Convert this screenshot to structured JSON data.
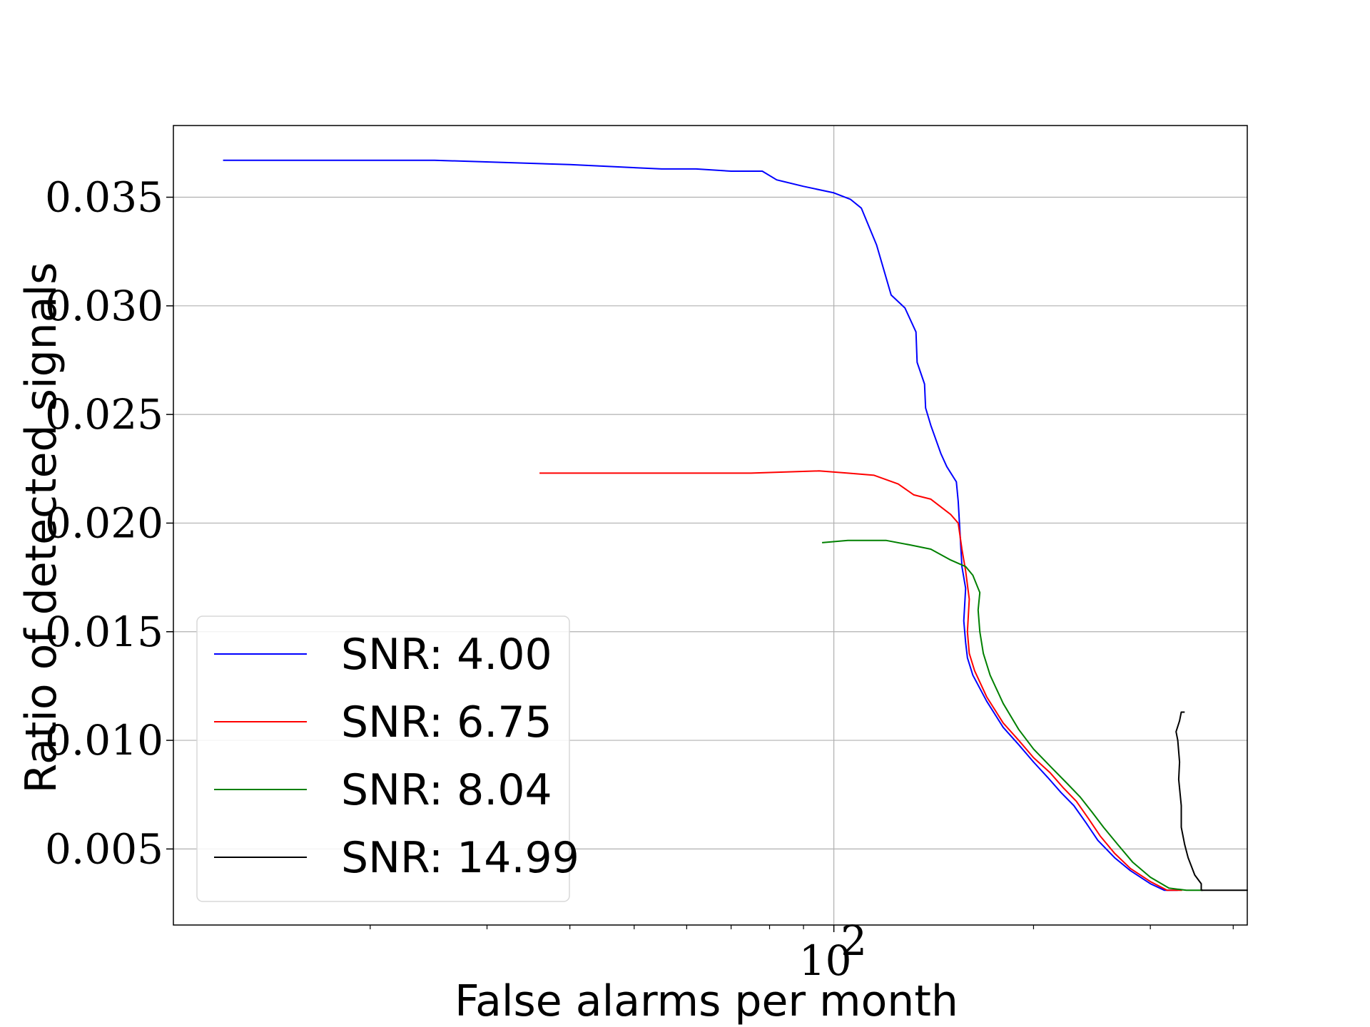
{
  "chart_data": {
    "type": "line",
    "title": "",
    "xlabel": "False alarms per month",
    "ylabel": "Ratio of detected signals",
    "x_scale": "log",
    "xlim": [
      10.1,
      420
    ],
    "ylim": [
      0.0015,
      0.0383
    ],
    "grid": true,
    "legend_position": "lower-left",
    "x_ticks": [
      {
        "value": 100,
        "label": "10",
        "exponent": "2"
      }
    ],
    "y_ticks": [
      {
        "value": 0.005,
        "label": "0.005"
      },
      {
        "value": 0.01,
        "label": "0.010"
      },
      {
        "value": 0.015,
        "label": "0.015"
      },
      {
        "value": 0.02,
        "label": "0.020"
      },
      {
        "value": 0.025,
        "label": "0.025"
      },
      {
        "value": 0.03,
        "label": "0.030"
      },
      {
        "value": 0.035,
        "label": "0.035"
      }
    ],
    "series": [
      {
        "name": "SNR: 4.00",
        "color": "#0000ff",
        "points": [
          [
            12.0,
            0.0367
          ],
          [
            17.0,
            0.0367
          ],
          [
            25.0,
            0.0367
          ],
          [
            40.0,
            0.0365
          ],
          [
            55.0,
            0.0363
          ],
          [
            62.0,
            0.0363
          ],
          [
            70.0,
            0.0362
          ],
          [
            78.0,
            0.0362
          ],
          [
            82.0,
            0.0358
          ],
          [
            90.0,
            0.0355
          ],
          [
            100.0,
            0.0352
          ],
          [
            106.0,
            0.0349
          ],
          [
            110.0,
            0.0345
          ],
          [
            116.0,
            0.0328
          ],
          [
            122.0,
            0.0305
          ],
          [
            128.0,
            0.0299
          ],
          [
            133.0,
            0.0288
          ],
          [
            133.5,
            0.0274
          ],
          [
            137.0,
            0.0264
          ],
          [
            137.5,
            0.0253
          ],
          [
            140.0,
            0.0245
          ],
          [
            145.0,
            0.0232
          ],
          [
            148.0,
            0.0226
          ],
          [
            153.0,
            0.0219
          ],
          [
            154.0,
            0.021
          ],
          [
            155.0,
            0.0195
          ],
          [
            156.0,
            0.018
          ],
          [
            158.0,
            0.017
          ],
          [
            157.0,
            0.0155
          ],
          [
            158.0,
            0.0145
          ],
          [
            159.0,
            0.0138
          ],
          [
            162.0,
            0.013
          ],
          [
            170.0,
            0.0118
          ],
          [
            180.0,
            0.0106
          ],
          [
            190.0,
            0.0098
          ],
          [
            200.0,
            0.009
          ],
          [
            210.0,
            0.0083
          ],
          [
            220.0,
            0.0076
          ],
          [
            230.0,
            0.007
          ],
          [
            240.0,
            0.0062
          ],
          [
            250.0,
            0.0054
          ],
          [
            265.0,
            0.0046
          ],
          [
            280.0,
            0.004
          ],
          [
            300.0,
            0.0034
          ],
          [
            315.0,
            0.0031
          ],
          [
            330.0,
            0.0031
          ]
        ]
      },
      {
        "name": "SNR: 6.75",
        "color": "#ff0000",
        "points": [
          [
            36.0,
            0.0223
          ],
          [
            45.0,
            0.0223
          ],
          [
            60.0,
            0.0223
          ],
          [
            75.0,
            0.0223
          ],
          [
            95.0,
            0.0224
          ],
          [
            105.0,
            0.0223
          ],
          [
            115.0,
            0.0222
          ],
          [
            125.0,
            0.0218
          ],
          [
            132.0,
            0.0213
          ],
          [
            140.0,
            0.0211
          ],
          [
            150.0,
            0.0204
          ],
          [
            154.0,
            0.02
          ],
          [
            156.0,
            0.0188
          ],
          [
            158.0,
            0.0178
          ],
          [
            160.0,
            0.0165
          ],
          [
            159.0,
            0.015
          ],
          [
            160.0,
            0.014
          ],
          [
            163.0,
            0.0132
          ],
          [
            170.0,
            0.012
          ],
          [
            180.0,
            0.0108
          ],
          [
            190.0,
            0.01
          ],
          [
            200.0,
            0.0092
          ],
          [
            212.0,
            0.0085
          ],
          [
            222.0,
            0.0078
          ],
          [
            232.0,
            0.0072
          ],
          [
            242.0,
            0.0064
          ],
          [
            252.0,
            0.0056
          ],
          [
            265.0,
            0.0048
          ],
          [
            280.0,
            0.0041
          ],
          [
            300.0,
            0.0035
          ],
          [
            318.0,
            0.0031
          ],
          [
            335.0,
            0.0031
          ]
        ]
      },
      {
        "name": "SNR: 8.04",
        "color": "#008000",
        "points": [
          [
            96.0,
            0.0191
          ],
          [
            105.0,
            0.0192
          ],
          [
            120.0,
            0.0192
          ],
          [
            130.0,
            0.019
          ],
          [
            140.0,
            0.0188
          ],
          [
            150.0,
            0.0183
          ],
          [
            158.0,
            0.018
          ],
          [
            162.0,
            0.0176
          ],
          [
            166.0,
            0.0168
          ],
          [
            165.0,
            0.016
          ],
          [
            166.0,
            0.015
          ],
          [
            168.0,
            0.014
          ],
          [
            172.0,
            0.013
          ],
          [
            180.0,
            0.0117
          ],
          [
            190.0,
            0.0105
          ],
          [
            200.0,
            0.0096
          ],
          [
            212.0,
            0.0088
          ],
          [
            225.0,
            0.008
          ],
          [
            235.0,
            0.0074
          ],
          [
            245.0,
            0.0067
          ],
          [
            255.0,
            0.006
          ],
          [
            268.0,
            0.0052
          ],
          [
            282.0,
            0.0044
          ],
          [
            300.0,
            0.0037
          ],
          [
            320.0,
            0.0032
          ],
          [
            340.0,
            0.0031
          ],
          [
            360.0,
            0.0031
          ]
        ]
      },
      {
        "name": "SNR: 14.99",
        "color": "#000000",
        "points": [
          [
            358.0,
            0.0031
          ],
          [
            420.0,
            0.0031
          ],
          [
            358.0,
            0.0031
          ],
          [
            358.0,
            0.0034
          ],
          [
            350.0,
            0.0038
          ],
          [
            342.0,
            0.0046
          ],
          [
            338.0,
            0.0052
          ],
          [
            334.0,
            0.006
          ],
          [
            334.0,
            0.007
          ],
          [
            331.0,
            0.0082
          ],
          [
            332.0,
            0.009
          ],
          [
            330.0,
            0.01
          ],
          [
            328.0,
            0.0104
          ],
          [
            332.0,
            0.0109
          ],
          [
            334.0,
            0.0113
          ],
          [
            338.0,
            0.0113
          ]
        ]
      }
    ]
  }
}
